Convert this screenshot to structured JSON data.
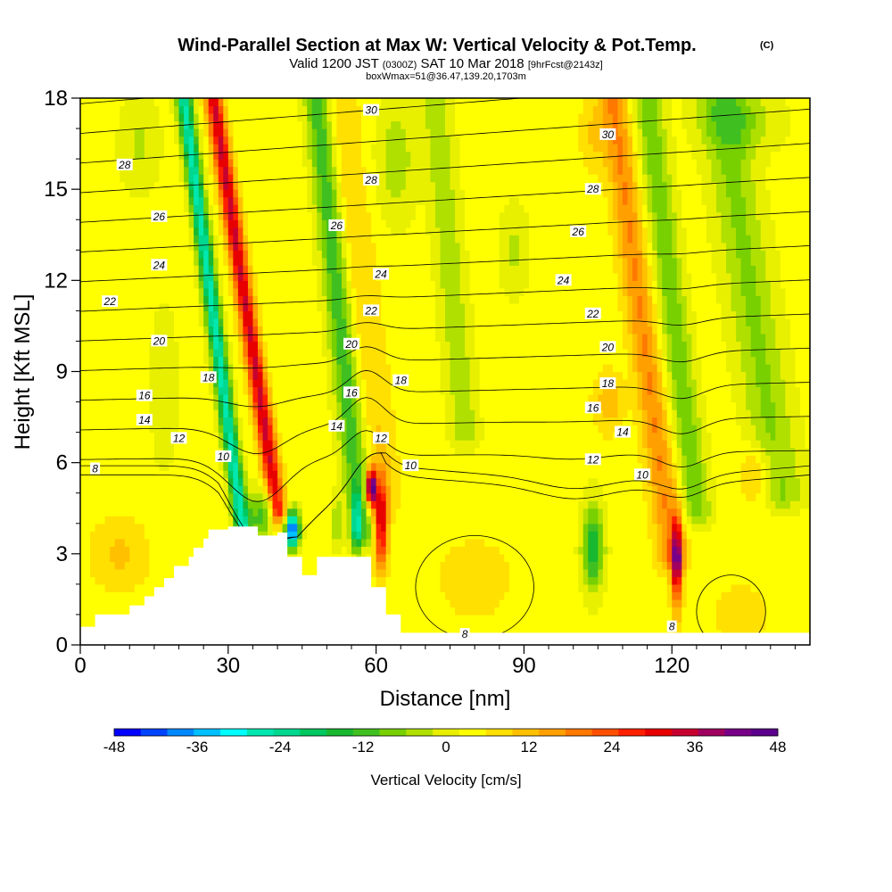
{
  "title": {
    "main": "Wind-Parallel Section at Max W: Vertical Velocity & Pot.Temp.",
    "copyright": "(C)",
    "valid_prefix": "Valid 1200 JST",
    "valid_utc": "(0300Z)",
    "valid_date": "SAT 10 Mar 2018",
    "forecast": "[9hrFcst@2143z]",
    "box_info": "boxWmax=51@36.47,139.20,1703m"
  },
  "chart_data": {
    "type": "heatmap",
    "xlabel": "Distance [nm]",
    "ylabel": "Height [Kft MSL]",
    "xlim": [
      0,
      148
    ],
    "ylim": [
      0,
      18
    ],
    "x_ticks": [
      "0",
      "30",
      "60",
      "90",
      "120"
    ],
    "x_tick_values": [
      0,
      30,
      60,
      90,
      120
    ],
    "y_ticks": [
      "0",
      "3",
      "6",
      "9",
      "12",
      "15",
      "18"
    ],
    "y_tick_values": [
      0,
      3,
      6,
      9,
      12,
      15,
      18
    ],
    "colorbar": {
      "label": "Vertical Velocity [cm/s]",
      "ticks": [
        "-48",
        "-36",
        "-24",
        "-12",
        "0",
        "12",
        "24",
        "36",
        "48"
      ],
      "tick_values": [
        -48,
        -36,
        -24,
        -12,
        0,
        12,
        24,
        36,
        48
      ],
      "colors": [
        "#0000ff",
        "#0044ff",
        "#0088ff",
        "#00c0ff",
        "#00ffff",
        "#00e8b0",
        "#00d890",
        "#00c860",
        "#18b830",
        "#40c020",
        "#78d000",
        "#b0e000",
        "#e8f000",
        "#ffff00",
        "#ffe000",
        "#ffc000",
        "#ffa000",
        "#ff7800",
        "#ff5000",
        "#ff2000",
        "#e80000",
        "#c80030",
        "#a00060",
        "#780088",
        "#5a008c"
      ]
    },
    "shading": {
      "field": "vertical velocity (cm/s)",
      "features": [
        {
          "kind": "slant",
          "x0": 33,
          "y0": 3.7,
          "x1": 21,
          "y1": 18,
          "w": -30,
          "wx": 1.6
        },
        {
          "kind": "slant",
          "x0": 40,
          "y0": 4.5,
          "x1": 27,
          "y1": 18,
          "w": 30,
          "wx": 1.8
        },
        {
          "kind": "slant",
          "x0": 57,
          "y0": 3.8,
          "x1": 48,
          "y1": 18,
          "w": -16,
          "wx": 2.6
        },
        {
          "kind": "slant",
          "x0": 62,
          "y0": 4.8,
          "x1": 53,
          "y1": 18,
          "w": 6,
          "wx": 3.5
        },
        {
          "kind": "slant",
          "x0": 78,
          "y0": 7.0,
          "x1": 72,
          "y1": 18,
          "w": -8,
          "wx": 3.0
        },
        {
          "kind": "slant",
          "x0": 120,
          "y0": 3.0,
          "x1": 108,
          "y1": 18,
          "w": 14,
          "wx": 3.0
        },
        {
          "kind": "slant",
          "x0": 125,
          "y0": 4.5,
          "x1": 115,
          "y1": 18,
          "w": -12,
          "wx": 3.0
        },
        {
          "kind": "slant",
          "x0": 142,
          "y0": 5.0,
          "x1": 130,
          "y1": 18,
          "w": -10,
          "wx": 5.0
        },
        {
          "kind": "blob",
          "x": 43,
          "y": 3.8,
          "sx": 1.4,
          "sy": 0.6,
          "w": -48
        },
        {
          "kind": "blob",
          "x": 37,
          "y": 4.3,
          "sx": 3.0,
          "sy": 0.9,
          "w": -16
        },
        {
          "kind": "blob",
          "x": 59,
          "y": 5.2,
          "sx": 1.0,
          "sy": 0.6,
          "w": 48
        },
        {
          "kind": "blob",
          "x": 61,
          "y": 4.0,
          "sx": 1.4,
          "sy": 1.5,
          "w": 30
        },
        {
          "kind": "blob",
          "x": 56,
          "y": 4.0,
          "sx": 0.9,
          "sy": 1.0,
          "w": -20
        },
        {
          "kind": "blob",
          "x": 52,
          "y": 4.0,
          "sx": 0.8,
          "sy": 0.9,
          "w": -10
        },
        {
          "kind": "blob",
          "x": 104,
          "y": 3.2,
          "sx": 2.2,
          "sy": 1.4,
          "w": -20
        },
        {
          "kind": "blob",
          "x": 121,
          "y": 2.7,
          "sx": 1.1,
          "sy": 1.5,
          "w": 34
        },
        {
          "kind": "blob",
          "x": 134,
          "y": 1.0,
          "sx": 5.0,
          "sy": 1.0,
          "w": 6
        },
        {
          "kind": "blob",
          "x": 8,
          "y": 3.0,
          "sx": 6.0,
          "sy": 1.2,
          "w": 7
        },
        {
          "kind": "blob",
          "x": 80,
          "y": 2.2,
          "sx": 8.0,
          "sy": 1.4,
          "w": 5
        },
        {
          "kind": "blob",
          "x": 107,
          "y": 8.0,
          "sx": 3.0,
          "sy": 1.0,
          "w": 9
        },
        {
          "kind": "blob",
          "x": 137,
          "y": 5.6,
          "sx": 3.0,
          "sy": 1.0,
          "w": 10
        },
        {
          "kind": "blob",
          "x": 104,
          "y": 16.8,
          "sx": 3.0,
          "sy": 1.2,
          "w": 6
        },
        {
          "kind": "blob",
          "x": 88,
          "y": 13.0,
          "sx": 3.0,
          "sy": 1.5,
          "w": -6
        },
        {
          "kind": "blob",
          "x": 64,
          "y": 16.0,
          "sx": 4.0,
          "sy": 2.0,
          "w": -8
        },
        {
          "kind": "blob",
          "x": 12,
          "y": 16.5,
          "sx": 4.0,
          "sy": 1.5,
          "w": -6
        },
        {
          "kind": "blob",
          "x": 134,
          "y": 17.3,
          "sx": 8.0,
          "sy": 1.0,
          "w": -8
        },
        {
          "kind": "blob",
          "x": 17,
          "y": 8.5,
          "sx": 3.0,
          "sy": 3.0,
          "w": -4
        }
      ]
    },
    "terrain_kft": [
      [
        0,
        0.6
      ],
      [
        3,
        0.6
      ],
      [
        3,
        1.0
      ],
      [
        10,
        1.0
      ],
      [
        10,
        1.3
      ],
      [
        13,
        1.3
      ],
      [
        13,
        1.6
      ],
      [
        15,
        1.6
      ],
      [
        15,
        1.9
      ],
      [
        17,
        1.9
      ],
      [
        17,
        2.2
      ],
      [
        19,
        2.2
      ],
      [
        19,
        2.6
      ],
      [
        22,
        2.6
      ],
      [
        22,
        2.9
      ],
      [
        23,
        2.9
      ],
      [
        23,
        3.2
      ],
      [
        25,
        3.2
      ],
      [
        25,
        3.5
      ],
      [
        26,
        3.5
      ],
      [
        26,
        3.8
      ],
      [
        30,
        3.8
      ],
      [
        30,
        3.9
      ],
      [
        36,
        3.9
      ],
      [
        36,
        3.6
      ],
      [
        40,
        3.6
      ],
      [
        40,
        3.7
      ],
      [
        42,
        3.7
      ],
      [
        42,
        2.9
      ],
      [
        45,
        2.9
      ],
      [
        45,
        2.3
      ],
      [
        48,
        2.3
      ],
      [
        48,
        2.9
      ],
      [
        52,
        2.9
      ],
      [
        52,
        2.9
      ],
      [
        59,
        2.9
      ],
      [
        59,
        1.9
      ],
      [
        62,
        1.9
      ],
      [
        62,
        1.0
      ],
      [
        65,
        1.0
      ],
      [
        65,
        0.4
      ],
      [
        148,
        0.4
      ]
    ],
    "theta_isentropes": {
      "levels": [
        8,
        10,
        12,
        14,
        16,
        18,
        20,
        22,
        24,
        26,
        28,
        30
      ],
      "labels": [
        "8",
        "10",
        "12",
        "14",
        "16",
        "18",
        "20",
        "22",
        "24",
        "26",
        "28",
        "30"
      ],
      "label_positions": [
        {
          "text": "8",
          "x": 3,
          "y": 5.8
        },
        {
          "text": "10",
          "x": 29,
          "y": 6.2
        },
        {
          "text": "12",
          "x": 20,
          "y": 6.8
        },
        {
          "text": "14",
          "x": 13,
          "y": 7.4
        },
        {
          "text": "16",
          "x": 13,
          "y": 8.2
        },
        {
          "text": "18",
          "x": 26,
          "y": 8.8
        },
        {
          "text": "20",
          "x": 16,
          "y": 10.0
        },
        {
          "text": "22",
          "x": 6,
          "y": 11.3
        },
        {
          "text": "24",
          "x": 16,
          "y": 12.5
        },
        {
          "text": "26",
          "x": 16,
          "y": 14.1
        },
        {
          "text": "28",
          "x": 9,
          "y": 15.8
        },
        {
          "text": "30",
          "x": 59,
          "y": 17.6
        },
        {
          "text": "28",
          "x": 59,
          "y": 15.3
        },
        {
          "text": "26",
          "x": 52,
          "y": 13.8
        },
        {
          "text": "24",
          "x": 61,
          "y": 12.2
        },
        {
          "text": "22",
          "x": 59,
          "y": 11.0
        },
        {
          "text": "20",
          "x": 55,
          "y": 9.9
        },
        {
          "text": "18",
          "x": 65,
          "y": 8.7
        },
        {
          "text": "16",
          "x": 55,
          "y": 8.3
        },
        {
          "text": "14",
          "x": 52,
          "y": 7.2
        },
        {
          "text": "12",
          "x": 61,
          "y": 6.8
        },
        {
          "text": "10",
          "x": 67,
          "y": 5.9
        },
        {
          "text": "30",
          "x": 107,
          "y": 16.8
        },
        {
          "text": "28",
          "x": 104,
          "y": 15.0
        },
        {
          "text": "26",
          "x": 101,
          "y": 13.6
        },
        {
          "text": "24",
          "x": 98,
          "y": 12.0
        },
        {
          "text": "22",
          "x": 104,
          "y": 10.9
        },
        {
          "text": "20",
          "x": 107,
          "y": 9.8
        },
        {
          "text": "18",
          "x": 107,
          "y": 8.6
        },
        {
          "text": "16",
          "x": 104,
          "y": 7.8
        },
        {
          "text": "14",
          "x": 110,
          "y": 7.0
        },
        {
          "text": "12",
          "x": 104,
          "y": 6.1
        },
        {
          "text": "10",
          "x": 114,
          "y": 5.6
        },
        {
          "text": "8",
          "x": 78,
          "y": 0.35
        },
        {
          "text": "8",
          "x": 120,
          "y": 0.6
        }
      ]
    }
  }
}
